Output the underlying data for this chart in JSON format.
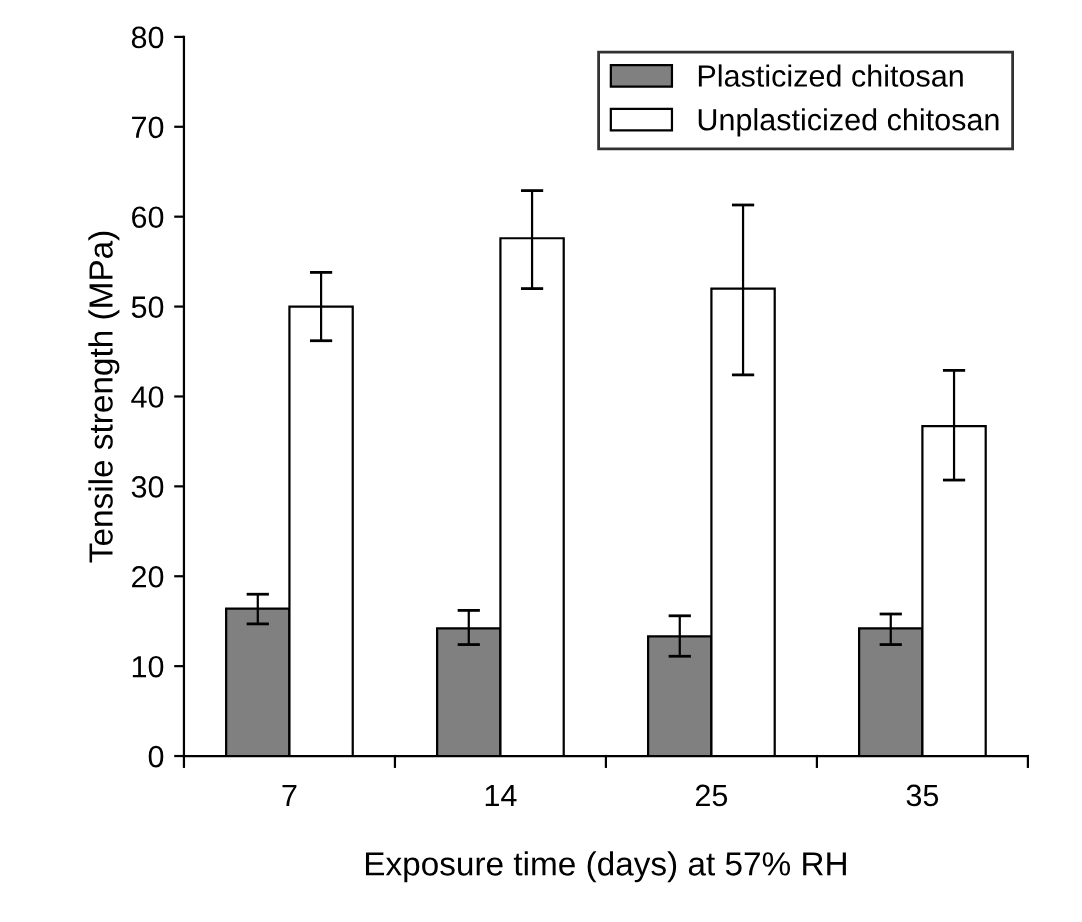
{
  "chart_data": {
    "type": "bar",
    "xlabel": "Exposure time (days) at 57% RH",
    "ylabel": "Tensile strength (MPa)",
    "categories": [
      "7",
      "14",
      "25",
      "35"
    ],
    "series": [
      {
        "name": "Plasticized chitosan",
        "color": "#808080",
        "values": [
          16.4,
          14.2,
          13.3,
          14.2
        ],
        "errors": [
          [
            14.7,
            18.0
          ],
          [
            12.4,
            16.2
          ],
          [
            11.1,
            15.6
          ],
          [
            12.4,
            15.8
          ]
        ]
      },
      {
        "name": "Unplasticized chitosan",
        "color": "#ffffff",
        "values": [
          50.0,
          57.6,
          52.0,
          36.7
        ],
        "errors": [
          [
            46.2,
            53.8
          ],
          [
            52.0,
            62.9
          ],
          [
            42.4,
            61.3
          ],
          [
            30.7,
            42.9
          ]
        ]
      }
    ],
    "ylim": [
      0,
      80
    ],
    "yticks": [
      0,
      10,
      20,
      30,
      40,
      50,
      60,
      70,
      80
    ],
    "legend": "top right",
    "grid": false
  }
}
